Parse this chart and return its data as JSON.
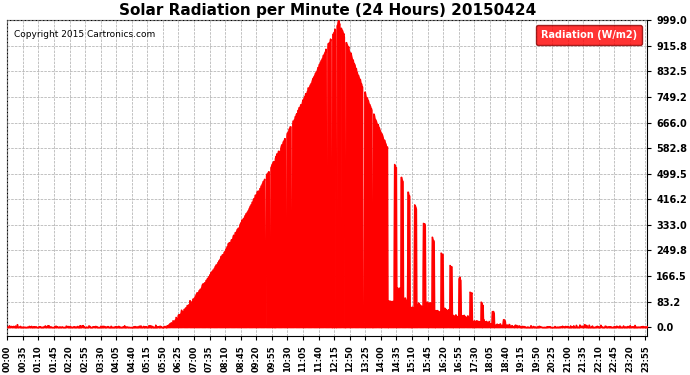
{
  "title": "Solar Radiation per Minute (24 Hours) 20150424",
  "copyright": "Copyright 2015 Cartronics.com",
  "legend_label": "Radiation (W/m2)",
  "fill_color": "#FF0000",
  "line_color": "#FF0000",
  "background_color": "#FFFFFF",
  "grid_color": "#AAAAAA",
  "y_ticks": [
    0.0,
    83.2,
    166.5,
    249.8,
    333.0,
    416.2,
    499.5,
    582.8,
    666.0,
    749.2,
    832.5,
    915.8,
    999.0
  ],
  "y_min": -30,
  "y_max": 999.0,
  "total_minutes": 1440,
  "sunrise_minute": 355,
  "sunset_minute": 1170,
  "peak_minute": 745
}
